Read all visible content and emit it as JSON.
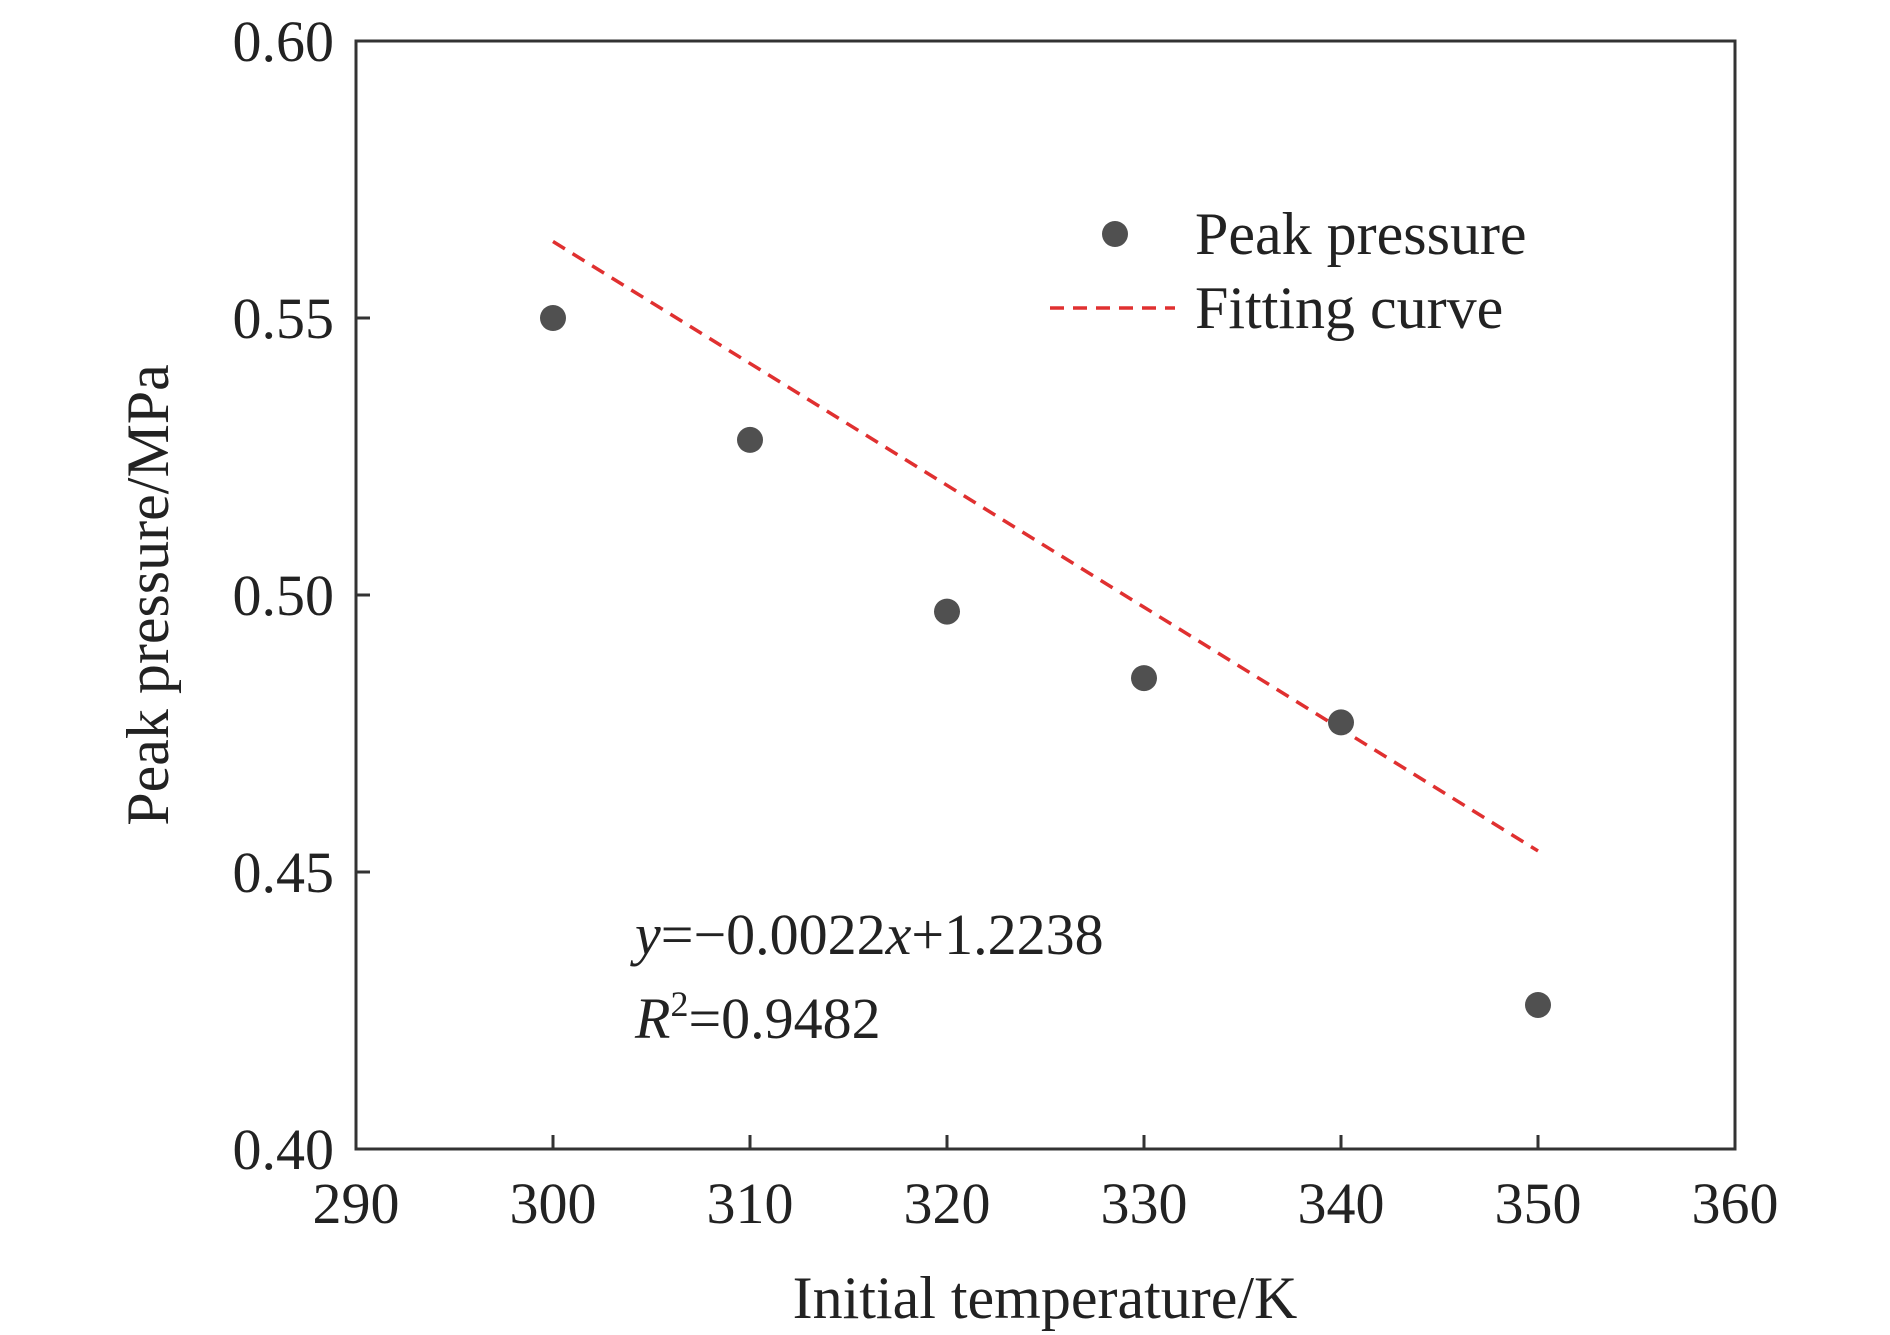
{
  "chart_data": {
    "type": "scatter",
    "title": "",
    "xlabel": "Initial temperature/K",
    "ylabel": "Peak pressure/MPa",
    "xlim": [
      290,
      360
    ],
    "ylim": [
      0.4,
      0.6
    ],
    "x_ticks": [
      290,
      300,
      310,
      320,
      330,
      340,
      350,
      360
    ],
    "x_tick_labels": [
      "290",
      "300",
      "310",
      "320",
      "330",
      "340",
      "350",
      "360"
    ],
    "y_ticks": [
      0.4,
      0.45,
      0.5,
      0.55,
      0.6
    ],
    "y_tick_labels": [
      "0.40",
      "0.45",
      "0.50",
      "0.55",
      "0.60"
    ],
    "grid": false,
    "legend_position": "top-right",
    "series": [
      {
        "name": "Peak pressure",
        "kind": "scatter",
        "color": "#505050",
        "x": [
          300,
          310,
          320,
          330,
          340,
          350
        ],
        "y": [
          0.55,
          0.528,
          0.497,
          0.485,
          0.477,
          0.426
        ]
      },
      {
        "name": "Fitting curve",
        "kind": "line",
        "style": "dashed",
        "color": "#e03030",
        "x": [
          300,
          350
        ],
        "y": [
          0.5638,
          0.4538
        ]
      }
    ],
    "annotation": {
      "equation_var_y": "y",
      "equation_rest_1": "=−0.0022",
      "equation_var_x": "x",
      "equation_rest_2": "+1.2238",
      "r2_var": "R",
      "r2_sup": "2",
      "r2_rest": "=0.9482"
    }
  }
}
